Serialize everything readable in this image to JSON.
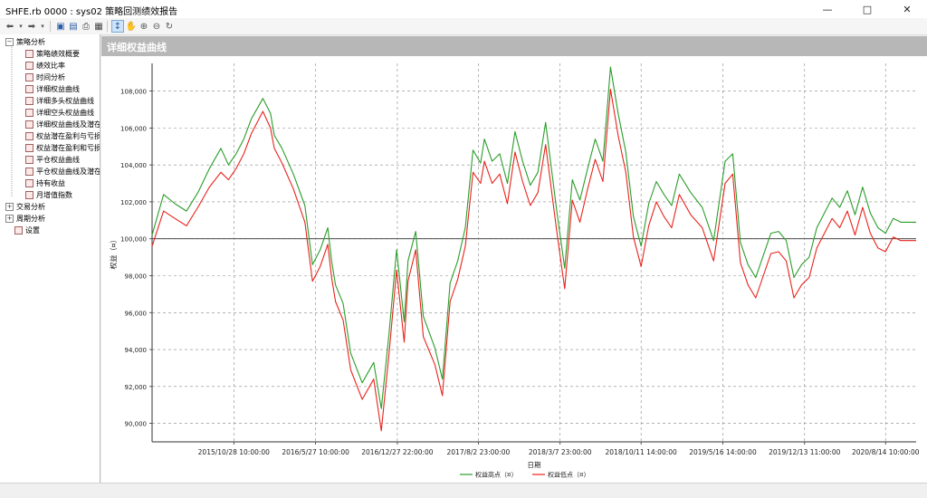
{
  "window": {
    "title": "SHFE.rb 0000 : sys02 策略回测绩效报告",
    "minimize_icon": "minimize-icon",
    "maximize_icon": "maximize-icon",
    "close_icon": "close-icon"
  },
  "toolbar": {
    "icons": [
      "back-arrow-icon",
      "dropdown-icon",
      "forward-arrow-icon",
      "dropdown-icon",
      "save-icon",
      "export-icon",
      "print-icon",
      "window-icon",
      "pointer-icon",
      "hand-icon",
      "zoom-in-icon",
      "zoom-out-icon",
      "refresh-icon"
    ]
  },
  "tree": {
    "groups": [
      {
        "label": "策略分析",
        "expanded": true,
        "items": [
          "策略绩效概要",
          "绩效比率",
          "时间分析",
          "详细权益曲线",
          "详细多头权益曲线",
          "详细空头权益曲线",
          "详细权益曲线及潜在",
          "权益潜在盈利与亏损",
          "权益潜在盈利和亏损",
          "平仓权益曲线",
          "平仓权益曲线及潜在",
          "持有收益",
          "月增值指数"
        ]
      },
      {
        "label": "交易分析",
        "expanded": false,
        "items": []
      },
      {
        "label": "周期分析",
        "expanded": false,
        "items": []
      }
    ],
    "settings_label": "设置"
  },
  "chart_panel": {
    "title": "详细权益曲线"
  },
  "chart_data": {
    "type": "line",
    "title": "",
    "xlabel": "日期",
    "ylabel": "权益（¤）",
    "ylim": [
      89000,
      109500
    ],
    "yticks": [
      90000,
      92000,
      94000,
      96000,
      98000,
      100000,
      102000,
      104000,
      106000,
      108000
    ],
    "ytick_labels": [
      "90,000",
      "92,000",
      "94,000",
      "96,000",
      "98,000",
      "100,000",
      "102,000",
      "104,000",
      "106,000",
      "108,000"
    ],
    "baseline": 100000,
    "x_ticks": [
      "2015/10/28 10:00:00",
      "2016/5/27 10:00:00",
      "2016/12/27 22:00:00",
      "2017/8/2 23:00:00",
      "2018/3/7 23:00:00",
      "2018/10/11 14:00:00",
      "2019/5/16 14:00:00",
      "2019/12/13 11:00:00",
      "2020/8/14 10:00:00"
    ],
    "x_tick_positions": [
      1.07,
      2.14,
      3.21,
      4.27,
      5.34,
      6.4,
      7.47,
      8.54,
      9.6
    ],
    "x_range": [
      0,
      10
    ],
    "grid": true,
    "legend_position": "bottom",
    "series": [
      {
        "name": "权益高点（¤）",
        "color": "#2a9d2a"
      },
      {
        "name": "权益低点（¤）",
        "color": "#e8231c"
      }
    ],
    "x": [
      0.0,
      0.15,
      0.3,
      0.45,
      0.6,
      0.75,
      0.9,
      1.0,
      1.1,
      1.2,
      1.3,
      1.45,
      1.55,
      1.6,
      1.7,
      1.85,
      2.0,
      2.1,
      2.2,
      2.3,
      2.35,
      2.4,
      2.5,
      2.6,
      2.75,
      2.9,
      3.0,
      3.1,
      3.2,
      3.3,
      3.35,
      3.45,
      3.55,
      3.7,
      3.8,
      3.9,
      4.0,
      4.1,
      4.2,
      4.3,
      4.35,
      4.45,
      4.55,
      4.65,
      4.75,
      4.85,
      4.95,
      5.05,
      5.15,
      5.3,
      5.4,
      5.5,
      5.6,
      5.7,
      5.8,
      5.9,
      6.0,
      6.1,
      6.2,
      6.3,
      6.4,
      6.5,
      6.6,
      6.7,
      6.8,
      6.9,
      7.05,
      7.2,
      7.35,
      7.5,
      7.6,
      7.7,
      7.8,
      7.9,
      8.0,
      8.1,
      8.2,
      8.3,
      8.4,
      8.5,
      8.6,
      8.7,
      8.8,
      8.9,
      9.0,
      9.1,
      9.2,
      9.3,
      9.4,
      9.5,
      9.6,
      9.7,
      9.8,
      9.9,
      10.0
    ],
    "high": [
      100200,
      102400,
      101900,
      101500,
      102500,
      103800,
      104900,
      104000,
      104600,
      105400,
      106500,
      107600,
      106800,
      105600,
      104900,
      103500,
      101800,
      98600,
      99400,
      100600,
      98800,
      97500,
      96500,
      93800,
      92200,
      93300,
      90800,
      94800,
      99400,
      95500,
      98800,
      100400,
      95800,
      94100,
      92400,
      97600,
      98800,
      100600,
      104800,
      104100,
      105400,
      104200,
      104600,
      103000,
      105800,
      104200,
      102900,
      103600,
      106300,
      101400,
      98400,
      103200,
      102100,
      103800,
      105400,
      104200,
      109300,
      106800,
      104700,
      101200,
      99600,
      101900,
      103100,
      102400,
      101800,
      103500,
      102500,
      101700,
      99900,
      104200,
      104600,
      99800,
      98600,
      97900,
      99100,
      100300,
      100400,
      99900,
      97900,
      98600,
      99000,
      100600,
      101400,
      102200,
      101700,
      102600,
      101300,
      102800,
      101400,
      100600,
      100300,
      101100,
      100900,
      100900,
      100900
    ],
    "low": [
      99600,
      101500,
      101100,
      100700,
      101700,
      102800,
      103600,
      103200,
      103800,
      104600,
      105700,
      106900,
      106000,
      104900,
      104100,
      102700,
      100900,
      97700,
      98500,
      99700,
      97900,
      96600,
      95600,
      92900,
      91300,
      92400,
      89600,
      93700,
      98300,
      94400,
      97700,
      99400,
      94700,
      93200,
      91500,
      96600,
      97800,
      99600,
      103600,
      103000,
      104200,
      103000,
      103500,
      101900,
      104700,
      103100,
      101800,
      102500,
      105100,
      100300,
      97300,
      102100,
      100900,
      102700,
      104300,
      103100,
      108100,
      105600,
      103600,
      100100,
      98500,
      100700,
      102000,
      101200,
      100600,
      102400,
      101300,
      100600,
      98800,
      103000,
      103500,
      98700,
      97500,
      96800,
      98000,
      99200,
      99300,
      98800,
      96800,
      97500,
      97900,
      99500,
      100300,
      101100,
      100600,
      101500,
      100200,
      101700,
      100300,
      99500,
      99300,
      100100,
      99900,
      99900,
      99900
    ]
  }
}
